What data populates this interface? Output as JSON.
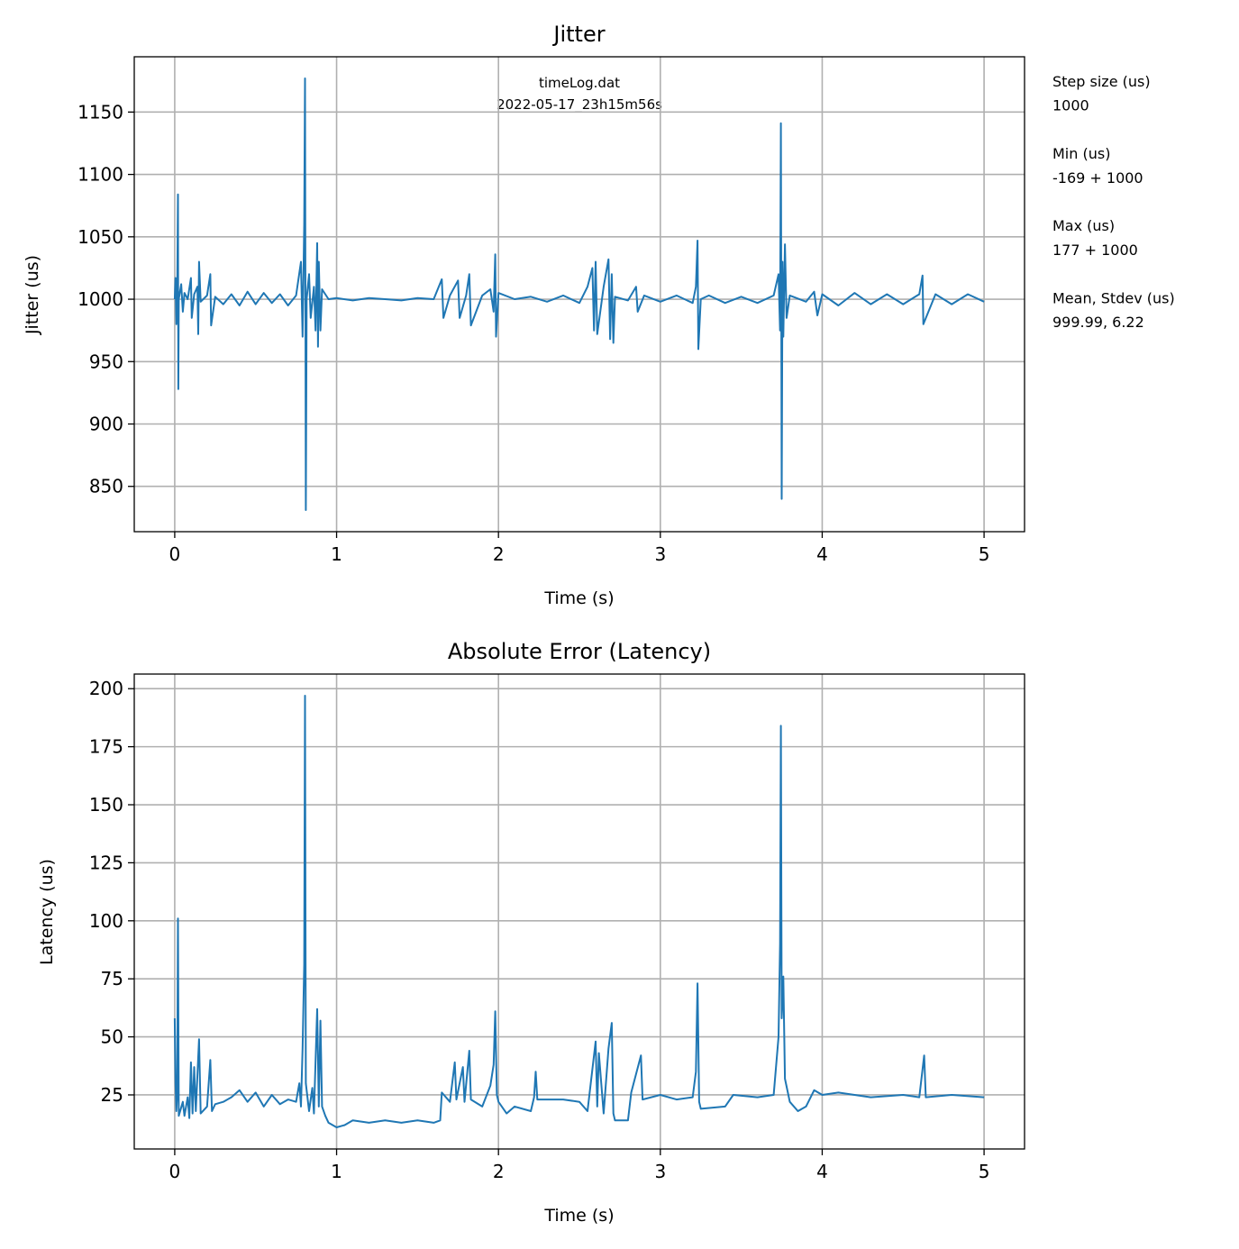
{
  "chart_data": [
    {
      "type": "line",
      "title": "Jitter",
      "xlabel": "Time (s)",
      "ylabel": "Jitter (us)",
      "xlim": [
        -0.25,
        5.25
      ],
      "ylim": [
        813.7,
        1194.3
      ],
      "xticks": [
        0,
        1,
        2,
        3,
        4,
        5
      ],
      "yticks": [
        850,
        900,
        950,
        1000,
        1050,
        1100,
        1150
      ],
      "grid": true,
      "color": "#1f77b4",
      "annotation": [
        "timeLog.dat",
        "2022-05-17_23h15m56s"
      ],
      "side_text": [
        "Step size (us)",
        "1000",
        "",
        "Min (us)",
        "-169 + 1000",
        "",
        "Max (us)",
        "177 + 1000",
        "",
        "Mean, Stdev (us)",
        "999.99, 6.22"
      ],
      "points": [
        [
          0,
          1000
        ],
        [
          0.005,
          1017
        ],
        [
          0.01,
          980
        ],
        [
          0.015,
          1000
        ],
        [
          0.02,
          1084
        ],
        [
          0.022,
          928
        ],
        [
          0.025,
          1000
        ],
        [
          0.04,
          1012
        ],
        [
          0.05,
          990
        ],
        [
          0.06,
          1005
        ],
        [
          0.08,
          1000
        ],
        [
          0.1,
          1017
        ],
        [
          0.105,
          985
        ],
        [
          0.12,
          1004
        ],
        [
          0.14,
          1010
        ],
        [
          0.145,
          972
        ],
        [
          0.15,
          1030
        ],
        [
          0.16,
          998
        ],
        [
          0.2,
          1003
        ],
        [
          0.22,
          1020
        ],
        [
          0.225,
          979
        ],
        [
          0.25,
          1002
        ],
        [
          0.3,
          996
        ],
        [
          0.35,
          1004
        ],
        [
          0.4,
          995
        ],
        [
          0.45,
          1006
        ],
        [
          0.5,
          996
        ],
        [
          0.55,
          1005
        ],
        [
          0.6,
          997
        ],
        [
          0.65,
          1004
        ],
        [
          0.7,
          995
        ],
        [
          0.75,
          1003
        ],
        [
          0.78,
          1030
        ],
        [
          0.79,
          970
        ],
        [
          0.8,
          1060
        ],
        [
          0.805,
          1177
        ],
        [
          0.81,
          831
        ],
        [
          0.815,
          1000
        ],
        [
          0.83,
          1020
        ],
        [
          0.84,
          985
        ],
        [
          0.86,
          1010
        ],
        [
          0.87,
          975
        ],
        [
          0.88,
          1045
        ],
        [
          0.885,
          962
        ],
        [
          0.89,
          1030
        ],
        [
          0.9,
          975
        ],
        [
          0.91,
          1008
        ],
        [
          0.95,
          1000
        ],
        [
          1.0,
          1001
        ],
        [
          1.1,
          999
        ],
        [
          1.2,
          1001
        ],
        [
          1.3,
          1000
        ],
        [
          1.4,
          999
        ],
        [
          1.5,
          1001
        ],
        [
          1.6,
          1000
        ],
        [
          1.65,
          1016
        ],
        [
          1.66,
          985
        ],
        [
          1.7,
          1003
        ],
        [
          1.75,
          1015
        ],
        [
          1.76,
          985
        ],
        [
          1.8,
          1003
        ],
        [
          1.82,
          1020
        ],
        [
          1.83,
          979
        ],
        [
          1.9,
          1003
        ],
        [
          1.95,
          1008
        ],
        [
          1.97,
          990
        ],
        [
          1.98,
          1036
        ],
        [
          1.985,
          970
        ],
        [
          2.0,
          1005
        ],
        [
          2.1,
          1000
        ],
        [
          2.2,
          1002
        ],
        [
          2.3,
          998
        ],
        [
          2.4,
          1003
        ],
        [
          2.5,
          997
        ],
        [
          2.55,
          1010
        ],
        [
          2.58,
          1025
        ],
        [
          2.59,
          975
        ],
        [
          2.6,
          1030
        ],
        [
          2.61,
          972
        ],
        [
          2.65,
          1010
        ],
        [
          2.68,
          1032
        ],
        [
          2.69,
          968
        ],
        [
          2.7,
          1020
        ],
        [
          2.71,
          965
        ],
        [
          2.72,
          1002
        ],
        [
          2.8,
          999
        ],
        [
          2.85,
          1010
        ],
        [
          2.86,
          990
        ],
        [
          2.9,
          1003
        ],
        [
          3.0,
          998
        ],
        [
          3.1,
          1003
        ],
        [
          3.2,
          997
        ],
        [
          3.22,
          1010
        ],
        [
          3.23,
          1047
        ],
        [
          3.235,
          960
        ],
        [
          3.25,
          1000
        ],
        [
          3.3,
          1003
        ],
        [
          3.4,
          997
        ],
        [
          3.5,
          1002
        ],
        [
          3.6,
          997
        ],
        [
          3.7,
          1003
        ],
        [
          3.73,
          1020
        ],
        [
          3.74,
          975
        ],
        [
          3.745,
          1141
        ],
        [
          3.75,
          840
        ],
        [
          3.755,
          1030
        ],
        [
          3.76,
          970
        ],
        [
          3.77,
          1044
        ],
        [
          3.78,
          985
        ],
        [
          3.8,
          1003
        ],
        [
          3.9,
          998
        ],
        [
          3.95,
          1006
        ],
        [
          3.97,
          987
        ],
        [
          4.0,
          1004
        ],
        [
          4.1,
          995
        ],
        [
          4.2,
          1005
        ],
        [
          4.3,
          996
        ],
        [
          4.4,
          1004
        ],
        [
          4.5,
          996
        ],
        [
          4.6,
          1004
        ],
        [
          4.62,
          1019
        ],
        [
          4.625,
          980
        ],
        [
          4.7,
          1004
        ],
        [
          4.8,
          996
        ],
        [
          4.9,
          1004
        ],
        [
          5.0,
          998
        ]
      ]
    },
    {
      "type": "line",
      "title": "Absolute Error (Latency)",
      "xlabel": "Time (s)",
      "ylabel": "Latency (us)",
      "xlim": [
        -0.25,
        5.25
      ],
      "ylim": [
        1.7,
        206.3
      ],
      "xticks": [
        0,
        1,
        2,
        3,
        4,
        5
      ],
      "yticks": [
        25,
        50,
        75,
        100,
        125,
        150,
        175,
        200
      ],
      "grid": true,
      "color": "#1f77b4",
      "points": [
        [
          0,
          58
        ],
        [
          0.005,
          30
        ],
        [
          0.01,
          18
        ],
        [
          0.015,
          25
        ],
        [
          0.02,
          101
        ],
        [
          0.025,
          16
        ],
        [
          0.05,
          22
        ],
        [
          0.06,
          16
        ],
        [
          0.08,
          24
        ],
        [
          0.09,
          15
        ],
        [
          0.1,
          39
        ],
        [
          0.11,
          17
        ],
        [
          0.12,
          37
        ],
        [
          0.13,
          18
        ],
        [
          0.15,
          49
        ],
        [
          0.16,
          17
        ],
        [
          0.2,
          20
        ],
        [
          0.22,
          40
        ],
        [
          0.23,
          18
        ],
        [
          0.25,
          21
        ],
        [
          0.3,
          22
        ],
        [
          0.35,
          24
        ],
        [
          0.4,
          27
        ],
        [
          0.45,
          22
        ],
        [
          0.5,
          26
        ],
        [
          0.55,
          20
        ],
        [
          0.6,
          25
        ],
        [
          0.65,
          21
        ],
        [
          0.7,
          23
        ],
        [
          0.75,
          22
        ],
        [
          0.77,
          30
        ],
        [
          0.78,
          20
        ],
        [
          0.79,
          45
        ],
        [
          0.8,
          81
        ],
        [
          0.805,
          197
        ],
        [
          0.81,
          30
        ],
        [
          0.83,
          18
        ],
        [
          0.85,
          28
        ],
        [
          0.86,
          17
        ],
        [
          0.88,
          62
        ],
        [
          0.89,
          20
        ],
        [
          0.9,
          57
        ],
        [
          0.91,
          20
        ],
        [
          0.93,
          16
        ],
        [
          0.95,
          13
        ],
        [
          1.0,
          11
        ],
        [
          1.05,
          12
        ],
        [
          1.1,
          14
        ],
        [
          1.2,
          13
        ],
        [
          1.3,
          14
        ],
        [
          1.4,
          13
        ],
        [
          1.5,
          14
        ],
        [
          1.6,
          13
        ],
        [
          1.64,
          14
        ],
        [
          1.65,
          26
        ],
        [
          1.7,
          22
        ],
        [
          1.73,
          39
        ],
        [
          1.74,
          23
        ],
        [
          1.78,
          37
        ],
        [
          1.79,
          22
        ],
        [
          1.82,
          44
        ],
        [
          1.83,
          23
        ],
        [
          1.9,
          20
        ],
        [
          1.95,
          29
        ],
        [
          1.97,
          38
        ],
        [
          1.98,
          61
        ],
        [
          1.99,
          25
        ],
        [
          2.0,
          22
        ],
        [
          2.05,
          17
        ],
        [
          2.1,
          20
        ],
        [
          2.2,
          18
        ],
        [
          2.22,
          24
        ],
        [
          2.23,
          35
        ],
        [
          2.24,
          23
        ],
        [
          2.4,
          23
        ],
        [
          2.5,
          22
        ],
        [
          2.55,
          18
        ],
        [
          2.6,
          48
        ],
        [
          2.61,
          20
        ],
        [
          2.62,
          43
        ],
        [
          2.65,
          17
        ],
        [
          2.68,
          45
        ],
        [
          2.7,
          56
        ],
        [
          2.71,
          17
        ],
        [
          2.72,
          14
        ],
        [
          2.8,
          14
        ],
        [
          2.82,
          26
        ],
        [
          2.88,
          42
        ],
        [
          2.89,
          23
        ],
        [
          3.0,
          25
        ],
        [
          3.1,
          23
        ],
        [
          3.2,
          24
        ],
        [
          3.22,
          35
        ],
        [
          3.23,
          73
        ],
        [
          3.24,
          22
        ],
        [
          3.25,
          19
        ],
        [
          3.4,
          20
        ],
        [
          3.45,
          25
        ],
        [
          3.6,
          24
        ],
        [
          3.7,
          25
        ],
        [
          3.73,
          50
        ],
        [
          3.74,
          90
        ],
        [
          3.745,
          184
        ],
        [
          3.75,
          58
        ],
        [
          3.76,
          76
        ],
        [
          3.77,
          32
        ],
        [
          3.8,
          22
        ],
        [
          3.85,
          18
        ],
        [
          3.9,
          20
        ],
        [
          3.95,
          27
        ],
        [
          4.0,
          25
        ],
        [
          4.1,
          26
        ],
        [
          4.3,
          24
        ],
        [
          4.5,
          25
        ],
        [
          4.6,
          24
        ],
        [
          4.63,
          42
        ],
        [
          4.64,
          24
        ],
        [
          4.8,
          25
        ],
        [
          5.0,
          24
        ]
      ]
    }
  ]
}
